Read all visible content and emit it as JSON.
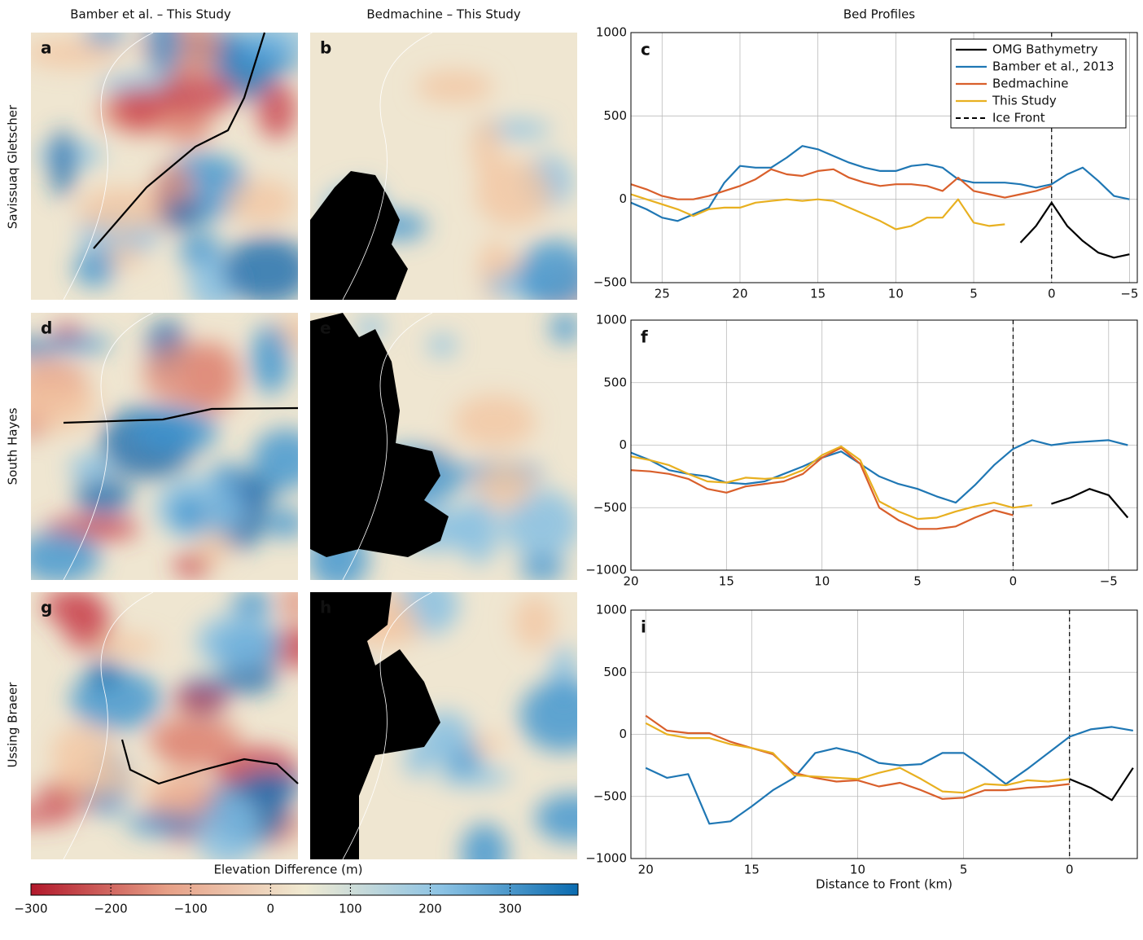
{
  "column_titles": [
    "Bamber et al. – This Study",
    "Bedmachine – This Study",
    "Bed Profiles"
  ],
  "row_labels": [
    "Savissuaq Gletscher",
    "South Hayes",
    "Ussing Braeer"
  ],
  "map_panels": [
    "a",
    "b",
    "d",
    "e",
    "g",
    "h"
  ],
  "colorbar": {
    "label": "Elevation Difference (m)",
    "lim": [
      -300,
      385
    ],
    "ticks": [
      {
        "value": -300,
        "label": "−300"
      },
      {
        "value": -200,
        "label": "−200"
      },
      {
        "value": -100,
        "label": "−100"
      },
      0,
      100,
      200,
      300
    ],
    "colors": [
      "#b2182b",
      "#e7a087",
      "#f0ead2",
      "#8cc3e4",
      "#0a6bb0"
    ]
  },
  "chart_data": [
    {
      "type": "line",
      "panel": "c",
      "xlim": [
        27,
        -5.5
      ],
      "ylim": [
        -500,
        1000
      ],
      "xticks": [
        25,
        20,
        15,
        10,
        5,
        0,
        {
          "value": -5,
          "label": "−5"
        }
      ],
      "yticks": [
        {
          "value": -500,
          "label": "−500"
        },
        0,
        500,
        1000
      ],
      "grid": true,
      "legend": "upper right",
      "ice_front_x": 0,
      "ice_front_label": "Ice Front",
      "x": [
        27,
        26,
        25,
        24,
        23,
        22,
        21,
        20,
        19,
        18,
        17,
        16,
        15,
        14,
        13,
        12,
        11,
        10,
        9,
        8,
        7,
        6,
        5,
        4,
        3,
        2,
        1,
        0,
        -1,
        -2,
        -3,
        -4,
        -5
      ],
      "series": [
        {
          "name": "OMG Bathymetry",
          "color": "#000000",
          "values": [
            null,
            null,
            null,
            null,
            null,
            null,
            null,
            null,
            null,
            null,
            null,
            null,
            null,
            null,
            null,
            null,
            null,
            null,
            null,
            null,
            null,
            null,
            null,
            null,
            null,
            -260,
            -160,
            -20,
            -160,
            -250,
            -320,
            -350,
            -330
          ]
        },
        {
          "name": "Bamber et al., 2013",
          "color": "#1f77b4",
          "values": [
            -20,
            -60,
            -110,
            -130,
            -90,
            -50,
            100,
            200,
            190,
            190,
            250,
            320,
            300,
            260,
            220,
            190,
            170,
            170,
            200,
            210,
            190,
            120,
            100,
            100,
            100,
            90,
            70,
            90,
            150,
            190,
            110,
            20,
            0
          ]
        },
        {
          "name": "Bedmachine",
          "color": "#d95f2b",
          "values": [
            90,
            60,
            20,
            0,
            0,
            20,
            50,
            80,
            120,
            180,
            150,
            140,
            170,
            180,
            130,
            100,
            80,
            90,
            90,
            80,
            50,
            130,
            50,
            30,
            10,
            30,
            50,
            80,
            null,
            null,
            null,
            null,
            null
          ]
        },
        {
          "name": "This Study",
          "color": "#e8b020",
          "values": [
            30,
            0,
            -30,
            -60,
            -100,
            -60,
            -50,
            -50,
            -20,
            -10,
            0,
            -10,
            0,
            -10,
            -50,
            -90,
            -130,
            -180,
            -160,
            -110,
            -110,
            0,
            -140,
            -160,
            -150,
            null,
            null,
            null,
            null,
            null,
            null,
            null,
            null
          ]
        }
      ]
    },
    {
      "type": "line",
      "panel": "f",
      "xlim": [
        20,
        -6.5
      ],
      "ylim": [
        -1000,
        1000
      ],
      "xticks": [
        20,
        15,
        10,
        5,
        0,
        {
          "value": -5,
          "label": "−5"
        }
      ],
      "yticks": [
        {
          "value": -1000,
          "label": "−1000"
        },
        {
          "value": -500,
          "label": "−500"
        },
        0,
        500,
        1000
      ],
      "grid": true,
      "ice_front_x": 0,
      "x": [
        20,
        19,
        18,
        17,
        16,
        15,
        14,
        13,
        12,
        11,
        10,
        9,
        8,
        7,
        6,
        5,
        4,
        3,
        2,
        1,
        0,
        -1,
        -2,
        -3,
        -4,
        -5,
        -6
      ],
      "series": [
        {
          "color": "#000000",
          "values": [
            null,
            null,
            null,
            null,
            null,
            null,
            null,
            null,
            null,
            null,
            null,
            null,
            null,
            null,
            null,
            null,
            null,
            null,
            null,
            null,
            null,
            null,
            -470,
            -420,
            -350,
            -400,
            -580
          ]
        },
        {
          "color": "#1f77b4",
          "values": [
            -60,
            -120,
            -200,
            -230,
            -250,
            -300,
            -310,
            -290,
            -230,
            -170,
            -100,
            -50,
            -150,
            -250,
            -310,
            -350,
            -410,
            -460,
            -320,
            -160,
            -30,
            40,
            0,
            20,
            30,
            40,
            0
          ]
        },
        {
          "color": "#d95f2b",
          "values": [
            -200,
            -210,
            -230,
            -270,
            -350,
            -380,
            -330,
            -310,
            -290,
            -230,
            -100,
            -20,
            -150,
            -500,
            -600,
            -670,
            -670,
            -650,
            -580,
            -520,
            -560,
            null,
            null,
            null,
            null,
            null,
            null
          ]
        },
        {
          "color": "#e8b020",
          "values": [
            -90,
            -120,
            -160,
            -230,
            -290,
            -300,
            -260,
            -270,
            -260,
            -200,
            -80,
            -10,
            -120,
            -450,
            -530,
            -590,
            -580,
            -530,
            -490,
            -460,
            -500,
            -480,
            null,
            null,
            null,
            null,
            null
          ]
        }
      ]
    },
    {
      "type": "line",
      "panel": "i",
      "xlim": [
        20.7,
        -3.2
      ],
      "ylim": [
        -1000,
        1000
      ],
      "xticks": [
        20,
        15,
        10,
        5,
        0
      ],
      "yticks": [
        {
          "value": -1000,
          "label": "−1000"
        },
        {
          "value": -500,
          "label": "−500"
        },
        0,
        500,
        1000
      ],
      "grid": true,
      "ice_front_x": 0,
      "x_label": "Distance to Front (km)",
      "x": [
        20,
        19,
        18,
        17,
        16,
        15,
        14,
        13,
        12,
        11,
        10,
        9,
        8,
        7,
        6,
        5,
        4,
        3,
        2,
        1,
        0,
        -1,
        -2,
        -3
      ],
      "series": [
        {
          "color": "#000000",
          "values": [
            null,
            null,
            null,
            null,
            null,
            null,
            null,
            null,
            null,
            null,
            null,
            null,
            null,
            null,
            null,
            null,
            null,
            null,
            null,
            null,
            -360,
            -430,
            -530,
            -270
          ]
        },
        {
          "color": "#1f77b4",
          "values": [
            -270,
            -350,
            -320,
            -720,
            -700,
            -580,
            -450,
            -350,
            -150,
            -110,
            -150,
            -230,
            -250,
            -240,
            -150,
            -150,
            -270,
            -400,
            -280,
            -150,
            -20,
            40,
            60,
            30
          ]
        },
        {
          "color": "#d95f2b",
          "values": [
            150,
            30,
            10,
            10,
            -60,
            -110,
            -160,
            -310,
            -350,
            -380,
            -370,
            -420,
            -390,
            -450,
            -520,
            -510,
            -450,
            -450,
            -430,
            -420,
            -400,
            null,
            null,
            null
          ]
        },
        {
          "color": "#e8b020",
          "values": [
            90,
            0,
            -30,
            -30,
            -80,
            -110,
            -150,
            -330,
            -340,
            -350,
            -360,
            -310,
            -270,
            -360,
            -460,
            -470,
            -400,
            -410,
            -370,
            -380,
            -360,
            null,
            null,
            null
          ]
        }
      ]
    }
  ]
}
